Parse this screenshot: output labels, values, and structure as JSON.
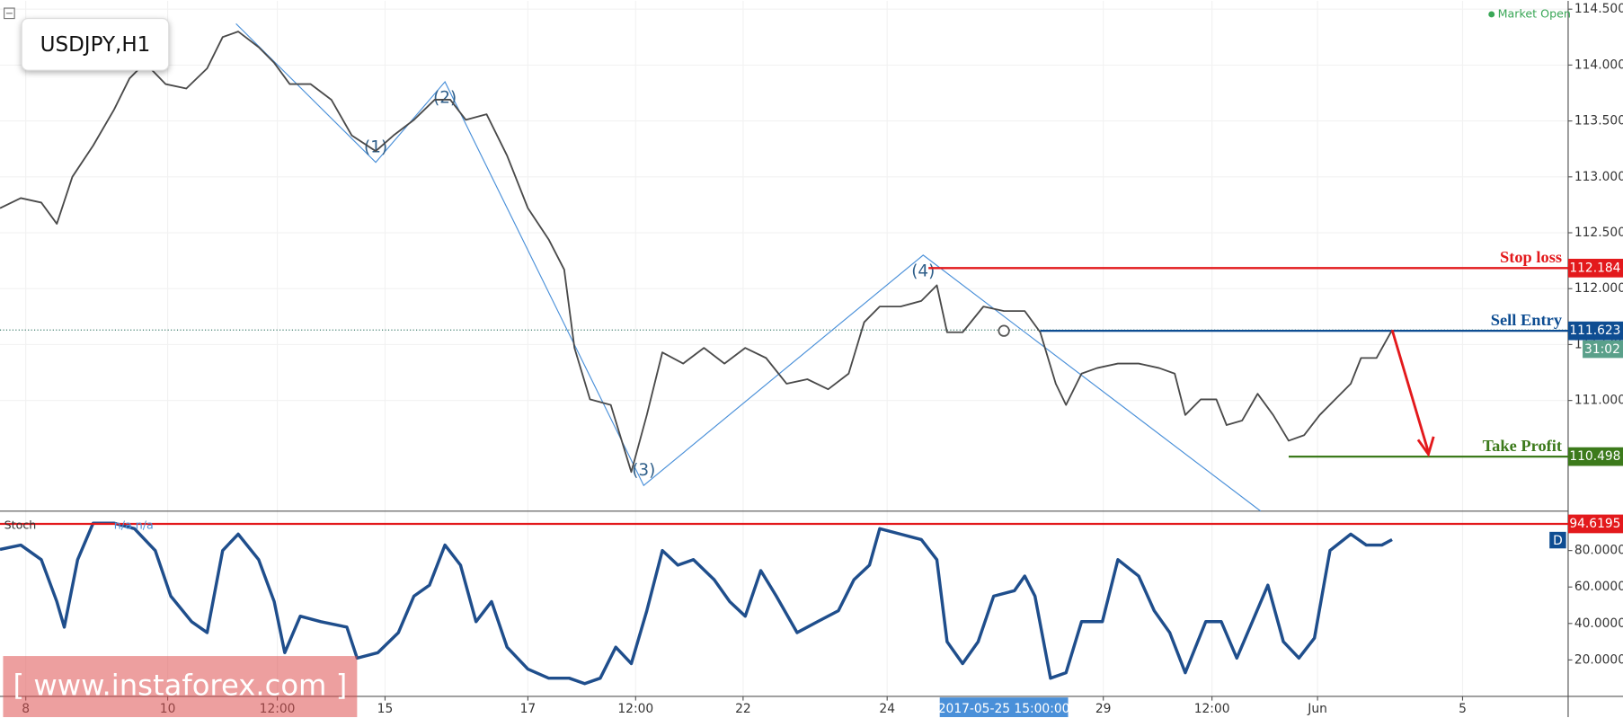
{
  "chart_data": [
    {
      "type": "line",
      "title": "USDJPY,H1",
      "status": "Market Open",
      "color": "#4a4a4a",
      "x": [
        0,
        6.7,
        13.3,
        18.3,
        23.3,
        30,
        36.7,
        41.7,
        46.7,
        53.3,
        60,
        66.7,
        71.7,
        76.7,
        83.3,
        88.3,
        93.3,
        100,
        106.7,
        113.3,
        121,
        126.7,
        133.3,
        140,
        145,
        150,
        156.7,
        163.3,
        170,
        176.7,
        181.7,
        185,
        190,
        196.7,
        203.3,
        208.3,
        213.3,
        220,
        226.7,
        233.3,
        240,
        246.7,
        253.3,
        260,
        266.7,
        273.3,
        278.3,
        283.3,
        290,
        296.7,
        301.7,
        305,
        310,
        316.7,
        323.3,
        330,
        335,
        340,
        343.3,
        348.3,
        353.3,
        360,
        366.7,
        373.3,
        378.3,
        381.7,
        386.7,
        391.7,
        395,
        400,
        405,
        410,
        415,
        420,
        425,
        430,
        435,
        438.3,
        443.3,
        448.3
      ],
      "values": [
        112.72,
        112.81,
        112.77,
        112.58,
        113.0,
        113.28,
        113.6,
        113.88,
        114.02,
        113.83,
        113.79,
        113.97,
        114.25,
        114.3,
        114.16,
        114.02,
        113.83,
        113.83,
        113.69,
        113.37,
        113.23,
        113.37,
        113.51,
        113.69,
        113.69,
        113.51,
        113.56,
        113.19,
        112.72,
        112.44,
        112.17,
        111.47,
        111.01,
        110.96,
        110.36,
        110.87,
        111.43,
        111.33,
        111.47,
        111.33,
        111.47,
        111.38,
        111.15,
        111.19,
        111.1,
        111.24,
        111.7,
        111.84,
        111.84,
        111.89,
        112.03,
        111.61,
        111.61,
        111.84,
        111.8,
        111.8,
        111.61,
        111.15,
        110.96,
        111.24,
        111.29,
        111.33,
        111.33,
        111.29,
        111.24,
        110.87,
        111.01,
        111.01,
        110.78,
        110.82,
        111.06,
        110.87,
        110.64,
        110.69,
        110.87,
        111.01,
        111.15,
        111.38,
        111.38,
        111.63
      ],
      "xlim": [
        0,
        505
      ],
      "xticks": [
        {
          "value": 8.3,
          "label": "8"
        },
        {
          "value": 54,
          "label": "10"
        },
        {
          "value": 89.3,
          "label": "12:00"
        },
        {
          "value": 124,
          "label": "15"
        },
        {
          "value": 170,
          "label": "17"
        },
        {
          "value": 204.7,
          "label": "12:00"
        },
        {
          "value": 239.3,
          "label": "22"
        },
        {
          "value": 285.7,
          "label": "24"
        },
        {
          "value": 355.3,
          "label": "29"
        },
        {
          "value": 390.3,
          "label": "12:00"
        },
        {
          "value": 424.3,
          "label": "Jun"
        },
        {
          "value": 471,
          "label": "5"
        }
      ],
      "crosshair": {
        "value": 323.3,
        "label": "2017-05-25 15:00:00"
      },
      "ylim": [
        110.01,
        114.574
      ],
      "yticks": [
        {
          "value": 111,
          "label": "111.000"
        },
        {
          "value": 111.5,
          "label": "111.500"
        },
        {
          "value": 112,
          "label": "112.000"
        },
        {
          "value": 112.5,
          "label": "112.500"
        },
        {
          "value": 113,
          "label": "113.000"
        },
        {
          "value": 113.5,
          "label": "113.500"
        },
        {
          "value": 114,
          "label": "114.000"
        },
        {
          "value": 114.5,
          "label": "114.500"
        }
      ],
      "levels": [
        {
          "name": "Stop loss",
          "value": 112.184,
          "start": 299,
          "color": "#e3191c"
        },
        {
          "name": "Sell Entry",
          "value": 111.623,
          "start": 335,
          "color": "#0e4d92"
        },
        {
          "name": "Take Profit",
          "value": 110.498,
          "start": 415,
          "color": "#3c7a1b"
        }
      ],
      "countdown": "31:02",
      "waves": {
        "color": "#4a90d9",
        "points": [
          {
            "label": null,
            "x": 76,
            "y": 114.37
          },
          {
            "label": "(1)",
            "x": 121,
            "y": 113.13
          },
          {
            "label": "(2)",
            "x": 143.3,
            "y": 113.85
          },
          {
            "label": "(3)",
            "x": 207.3,
            "y": 110.24
          },
          {
            "label": "(4)",
            "x": 297.3,
            "y": 112.3
          },
          {
            "label": null,
            "x": 406,
            "y": 110.01
          }
        ]
      },
      "watermark": "[ www.instaforex.com ]"
    },
    {
      "type": "line",
      "title": "Stoch",
      "note": "n/a n/a",
      "badge": "D",
      "color": "#1f4e8c",
      "x": [
        0,
        6.7,
        13.3,
        18.3,
        20.7,
        25,
        30,
        36.7,
        43.3,
        50,
        55,
        61.7,
        66.7,
        71.7,
        76.7,
        83.3,
        88.3,
        91.7,
        96.7,
        103.3,
        111.7,
        115,
        121.7,
        128.3,
        133.3,
        138.3,
        143.3,
        148.3,
        153.3,
        158.3,
        163.3,
        170,
        176.7,
        183.3,
        188.3,
        193.3,
        198.3,
        203.3,
        208.3,
        213.3,
        218.3,
        223.3,
        230,
        235,
        240,
        245,
        250,
        256.7,
        263.3,
        270,
        275,
        280,
        283.3,
        290,
        296.7,
        301.7,
        305,
        310,
        315,
        320,
        326.7,
        330,
        333.3,
        338.3,
        343.3,
        348.3,
        355,
        360,
        366.7,
        371.7,
        376.7,
        381.7,
        388.3,
        393.3,
        398.3,
        403.3,
        408.3,
        413.3,
        418.3,
        423.3,
        428.3,
        435,
        440,
        445,
        448.3
      ],
      "values": [
        80.6,
        83,
        75,
        52,
        38,
        75,
        95,
        95,
        92,
        80,
        55,
        41,
        35,
        80,
        89,
        75,
        52,
        24,
        44,
        41,
        38,
        21,
        24,
        35,
        55,
        61,
        83,
        72,
        41,
        52,
        27,
        15,
        10,
        10,
        7,
        10,
        27,
        18,
        47,
        80,
        72,
        75,
        64,
        52,
        44,
        69,
        55,
        35,
        41,
        47,
        64,
        72,
        92,
        89,
        86,
        75,
        30,
        18,
        30,
        55,
        58,
        66,
        55,
        10,
        13,
        41,
        41,
        75,
        66,
        47,
        35,
        13,
        41,
        41,
        21,
        41,
        61,
        30,
        21,
        32,
        80,
        89,
        83,
        83,
        86
      ],
      "xlim": [
        0,
        505
      ],
      "ylim": [
        0,
        101.6
      ],
      "yticks": [
        {
          "value": 20,
          "label": "20.0000"
        },
        {
          "value": 40,
          "label": "40.0000"
        },
        {
          "value": 60,
          "label": "60.0000"
        },
        {
          "value": 80,
          "label": "80.0000"
        }
      ],
      "level": {
        "value": 94.6195,
        "color": "#e3191c"
      }
    }
  ]
}
